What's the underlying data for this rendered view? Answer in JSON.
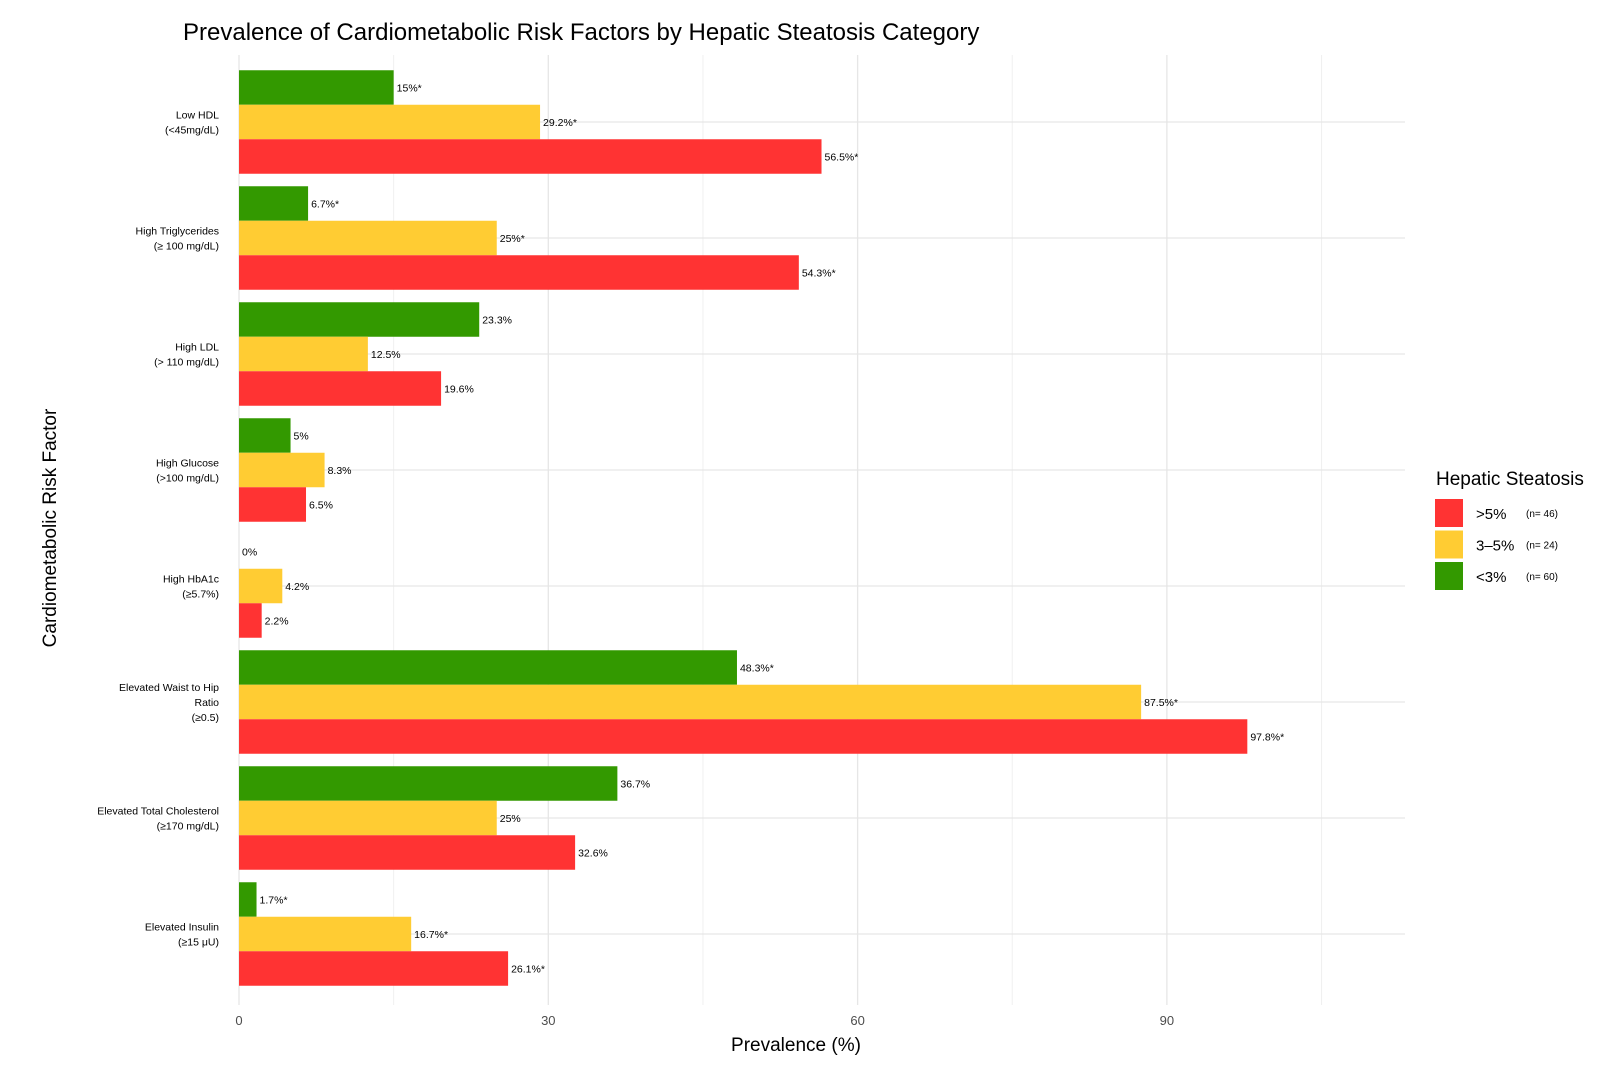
{
  "chart_data": {
    "type": "bar",
    "orientation": "horizontal",
    "title": "Prevalence of Cardiometabolic Risk Factors by Hepatic Steatosis Category",
    "xlabel": "Prevalence (%)",
    "ylabel": "Cardiometabolic Risk Factor",
    "xlim": [
      0,
      113
    ],
    "xticks": [
      0,
      30,
      60,
      90
    ],
    "xtick_labels": [
      "0",
      "30",
      "60",
      "90"
    ],
    "grid": true,
    "legend_position": "right",
    "legend_title": "Hepatic Steatosis",
    "categories": [
      {
        "lines": [
          "Low HDL",
          "(<45mg/dL)"
        ]
      },
      {
        "lines": [
          "High Triglycerides",
          "(≥ 100 mg/dL)"
        ]
      },
      {
        "lines": [
          "High LDL",
          "(> 110 mg/dL)"
        ]
      },
      {
        "lines": [
          "High Glucose",
          "(>100 mg/dL)"
        ]
      },
      {
        "lines": [
          "High HbA1c",
          "(≥5.7%)"
        ]
      },
      {
        "lines": [
          "Elevated Waist to Hip",
          "Ratio",
          "(≥0.5)"
        ]
      },
      {
        "lines": [
          "Elevated Total Cholesterol",
          "(≥170 mg/dL)"
        ]
      },
      {
        "lines": [
          "Elevated Insulin",
          "(≥15 μU)"
        ]
      }
    ],
    "series": [
      {
        "name": "<3%",
        "n_label": "(n= 60)",
        "color": "#339900",
        "values": [
          15,
          6.7,
          23.3,
          5,
          0,
          48.3,
          36.7,
          1.7
        ],
        "labels": [
          "15%*",
          "6.7%*",
          "23.3%",
          "5%",
          "0%",
          "48.3%*",
          "36.7%",
          "1.7%*"
        ]
      },
      {
        "name": "3–5%",
        "n_label": "(n= 24)",
        "color": "#ffcc33",
        "values": [
          29.2,
          25,
          12.5,
          8.3,
          4.2,
          87.5,
          25,
          16.7
        ],
        "labels": [
          "29.2%*",
          "25%*",
          "12.5%",
          "8.3%",
          "4.2%",
          "87.5%*",
          "25%",
          "16.7%*"
        ]
      },
      {
        "name": ">5%",
        "n_label": "(n= 46)",
        "color": "#ff3333",
        "values": [
          56.5,
          54.3,
          19.6,
          6.5,
          2.2,
          97.8,
          32.6,
          26.1
        ],
        "labels": [
          "56.5%*",
          "54.3%*",
          "19.6%",
          "6.5%",
          "2.2%",
          "97.8%*",
          "32.6%",
          "26.1%*"
        ]
      }
    ],
    "legend_order": [
      ">5%",
      "3–5%",
      "<3%"
    ]
  }
}
